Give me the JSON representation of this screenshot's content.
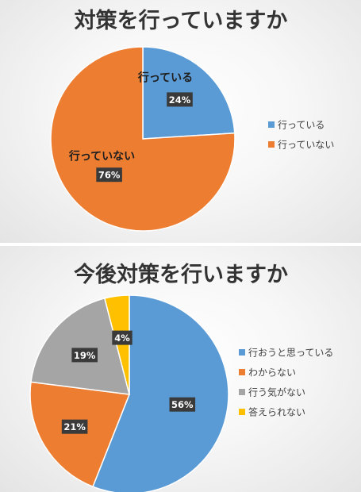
{
  "chart_data": [
    {
      "type": "pie",
      "title": "対策を行っていますか",
      "categories": [
        "行っている",
        "行っていない"
      ],
      "values": [
        24,
        76
      ],
      "data_labels": [
        "24%",
        "76%"
      ],
      "slice_labels": [
        "行っている",
        "行っていない"
      ],
      "colors": [
        "#5b9bd5",
        "#ed7d31"
      ],
      "legend": "right"
    },
    {
      "type": "pie",
      "title": "今後対策を行いますか",
      "categories": [
        "行おうと思っている",
        "わからない",
        "行う気がない",
        "答えられない"
      ],
      "values": [
        56,
        21,
        19,
        4
      ],
      "data_labels": [
        "56%",
        "21%",
        "19%",
        "4%"
      ],
      "colors": [
        "#5b9bd5",
        "#ed7d31",
        "#a5a5a5",
        "#ffc000"
      ],
      "legend": "right"
    }
  ]
}
